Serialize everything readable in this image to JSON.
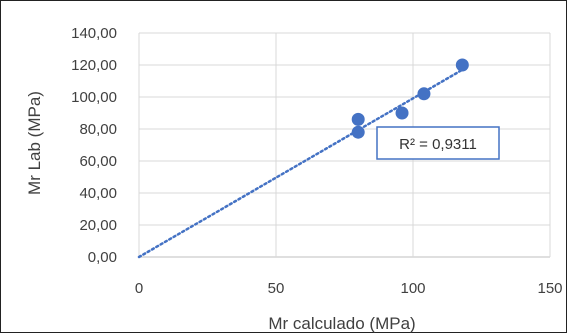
{
  "chart_data": {
    "type": "scatter",
    "xlabel": "Mr calculado (MPa)",
    "ylabel": "Mr Lab (MPa)",
    "xlim": [
      0,
      150
    ],
    "ylim": [
      0,
      140
    ],
    "x_ticks": [
      0,
      50,
      100,
      150
    ],
    "x_tick_labels": [
      "0",
      "50",
      "100",
      "150"
    ],
    "y_ticks": [
      0,
      20,
      40,
      60,
      80,
      100,
      120,
      140
    ],
    "y_tick_labels": [
      "0,00",
      "20,00",
      "40,00",
      "60,00",
      "80,00",
      "100,00",
      "120,00",
      "140,00"
    ],
    "grid": true,
    "series": [
      {
        "x": [
          80,
          80,
          96,
          104,
          118
        ],
        "y": [
          86,
          78,
          90,
          102,
          120
        ],
        "color": "#4472c4"
      }
    ],
    "trendline": {
      "type": "linear",
      "style": "dotted",
      "color": "#4472c4",
      "from": [
        0,
        0
      ],
      "to": [
        118,
        117
      ],
      "annotation": "R² = 0,9311"
    }
  }
}
